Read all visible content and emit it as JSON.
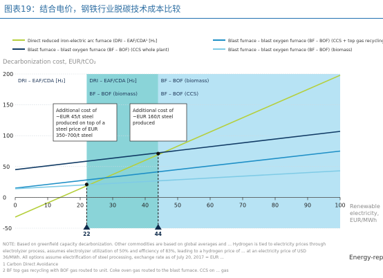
{
  "page_title": "图表19：结合电价，钢铁行业脱碳技术成本比较",
  "watermark": "Energy-report",
  "notes": [
    "NOTE: Based on greenfield capacity decarbonization. Other commodities are based on global averages and ... Hydrogen is tied to electricity prices through",
    "electrolyzer process, assumes electrolyzer utilization of 50% and efficiency of 83%, leading to a hydrogen price of ... at an electricity price of USD",
    "36/MWh. All options assume electrification of steel processing, exchange rate as of July 20, 2017 = EUR ...",
    "1 Carbon Direct Avoidance",
    "2 BF top gas recycling with BOF gas routed to unit. Coke oven gas routed to the blast furnace. CCS on ... gas"
  ],
  "chart_data": {
    "type": "line",
    "ylabel": "Decarbonization cost, EUR/tCO₂",
    "xlabel": "Renewable electricity, EUR/MWh",
    "xlim": [
      0,
      100
    ],
    "ylim": [
      -50,
      200
    ],
    "x_ticks": [
      0,
      10,
      20,
      30,
      40,
      50,
      60,
      70,
      80,
      90,
      100
    ],
    "y_ticks": [
      -50,
      0,
      50,
      100,
      150,
      200
    ],
    "grid": true,
    "legend_position": "top",
    "series": [
      {
        "name": "Direct reduced iron-electric arc furnace (DRI – EAF/CDA¹ [H₂]",
        "color": "#b5cf3c",
        "x": [
          0,
          100
        ],
        "y": [
          -32,
          198
        ]
      },
      {
        "name": "Blast furnace – blast oxygen furnace (BF – BOF) (CCS + top gas recycling)²",
        "color": "#1e8fc6",
        "x": [
          0,
          100
        ],
        "y": [
          15,
          75
        ]
      },
      {
        "name": "Blast furnace – blast oxygen furnace (BF – BOF) (CCS whole plant)",
        "color": "#103a64",
        "x": [
          0,
          100
        ],
        "y": [
          45,
          107
        ]
      },
      {
        "name": "Blast furnace – blast oxygen furnace (BF – BOF) (biomass)",
        "color": "#7fcbe6",
        "x": [
          0,
          100
        ],
        "y": [
          14,
          43
        ]
      }
    ],
    "regions": [
      {
        "x_from": 22,
        "x_to": 44,
        "color": "#8ad4d8",
        "labels": [
          "DRI – EAF/CDA [H₂]",
          "BF – BOF (biomass)"
        ]
      },
      {
        "x_from": 44,
        "x_to": 100,
        "color": "#b7e3f4",
        "labels": [
          "BF – BOF (biomass)",
          "BF – BOF (CCS)"
        ]
      }
    ],
    "region_left_label": "DRI – EAF/CDA [H₂]",
    "markers": [
      {
        "x": 22,
        "y": 21,
        "label": "22"
      },
      {
        "x": 44,
        "y": 71,
        "label": "44"
      }
    ],
    "annotations": [
      "Additional cost of ~EUR 45/t steel produced on top of a steel price of EUR 350–700/t steel",
      "Additional cost of ~EUR 160/t steel produced"
    ]
  }
}
